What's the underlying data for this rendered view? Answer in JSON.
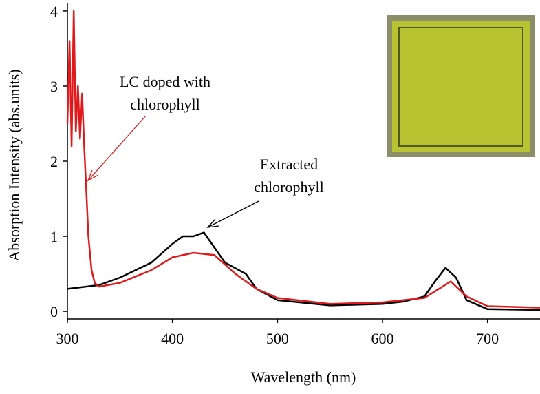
{
  "chart_data": {
    "type": "line",
    "x_label": "Wavelength (nm)",
    "y_label": "Absorption Intensity (abs.units)",
    "xlim": [
      300,
      750
    ],
    "ylim": [
      -0.1,
      4.1
    ],
    "xticks": [
      300,
      400,
      500,
      600,
      700
    ],
    "yticks": [
      0,
      1,
      2,
      3,
      4
    ],
    "series": [
      {
        "color": "#000000",
        "x": [
          300,
          330,
          350,
          380,
          400,
          410,
          420,
          430,
          440,
          450,
          470,
          480,
          500,
          550,
          600,
          620,
          640,
          650,
          660,
          670,
          680,
          700,
          750
        ],
        "values": [
          0.3,
          0.35,
          0.45,
          0.65,
          0.9,
          1.0,
          1.0,
          1.05,
          0.85,
          0.65,
          0.5,
          0.3,
          0.15,
          0.08,
          0.1,
          0.13,
          0.2,
          0.4,
          0.58,
          0.45,
          0.15,
          0.03,
          0.02
        ]
      },
      {
        "color": "#e0191c",
        "x": [
          300,
          302,
          304,
          306,
          308,
          310,
          312,
          314,
          316,
          318,
          320,
          323,
          326,
          330,
          350,
          380,
          400,
          420,
          440,
          460,
          480,
          500,
          550,
          600,
          640,
          665,
          680,
          700,
          750
        ],
        "values": [
          2.5,
          3.6,
          2.2,
          4.0,
          2.4,
          3.0,
          2.3,
          2.9,
          2.2,
          1.6,
          1.0,
          0.55,
          0.38,
          0.33,
          0.38,
          0.55,
          0.72,
          0.78,
          0.75,
          0.5,
          0.3,
          0.18,
          0.1,
          0.12,
          0.18,
          0.4,
          0.2,
          0.07,
          0.05
        ]
      }
    ],
    "annotations": [
      {
        "lines": [
          "LC doped with",
          "chlorophyll"
        ],
        "color": "#e0191c"
      },
      {
        "lines": [
          "Extracted",
          "chlorophyll"
        ],
        "color": "#000000"
      }
    ]
  }
}
